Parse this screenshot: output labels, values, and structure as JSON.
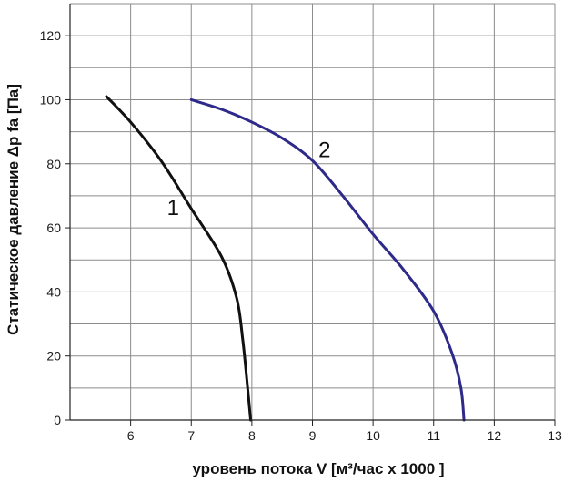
{
  "chart_data": {
    "type": "line",
    "xlabel": "уровень потока  V [м³/час x 1000 ]",
    "ylabel": "Статическое давление  Δp fa [Па]",
    "xlim": [
      5,
      13
    ],
    "ylim": [
      0,
      130
    ],
    "xticks": [
      "6",
      "7",
      "8",
      "9",
      "10",
      "11",
      "12",
      "13"
    ],
    "yticks": [
      "0",
      "20",
      "40",
      "60",
      "80",
      "100",
      "120"
    ],
    "xtick_values": [
      6,
      7,
      8,
      9,
      10,
      11,
      12,
      13
    ],
    "ytick_values": [
      0,
      20,
      40,
      60,
      80,
      100,
      120
    ],
    "grid": true,
    "series": [
      {
        "name": "1",
        "color": "#111111",
        "points": [
          [
            5.6,
            101
          ],
          [
            6.0,
            93
          ],
          [
            6.5,
            81
          ],
          [
            7.0,
            66
          ],
          [
            7.5,
            51
          ],
          [
            7.75,
            38
          ],
          [
            7.85,
            25
          ],
          [
            7.92,
            12
          ],
          [
            7.98,
            0
          ]
        ]
      },
      {
        "name": "2",
        "color": "#2e2a8a",
        "points": [
          [
            7.0,
            100
          ],
          [
            7.5,
            97
          ],
          [
            8.0,
            93
          ],
          [
            8.5,
            88
          ],
          [
            9.0,
            81
          ],
          [
            9.5,
            70
          ],
          [
            10.0,
            58
          ],
          [
            10.5,
            47
          ],
          [
            11.0,
            34
          ],
          [
            11.3,
            21
          ],
          [
            11.45,
            10
          ],
          [
            11.5,
            0
          ]
        ]
      }
    ],
    "curve_labels": [
      {
        "text": "1",
        "x": 6.7,
        "y": 64
      },
      {
        "text": "2",
        "x": 9.2,
        "y": 82
      }
    ]
  }
}
